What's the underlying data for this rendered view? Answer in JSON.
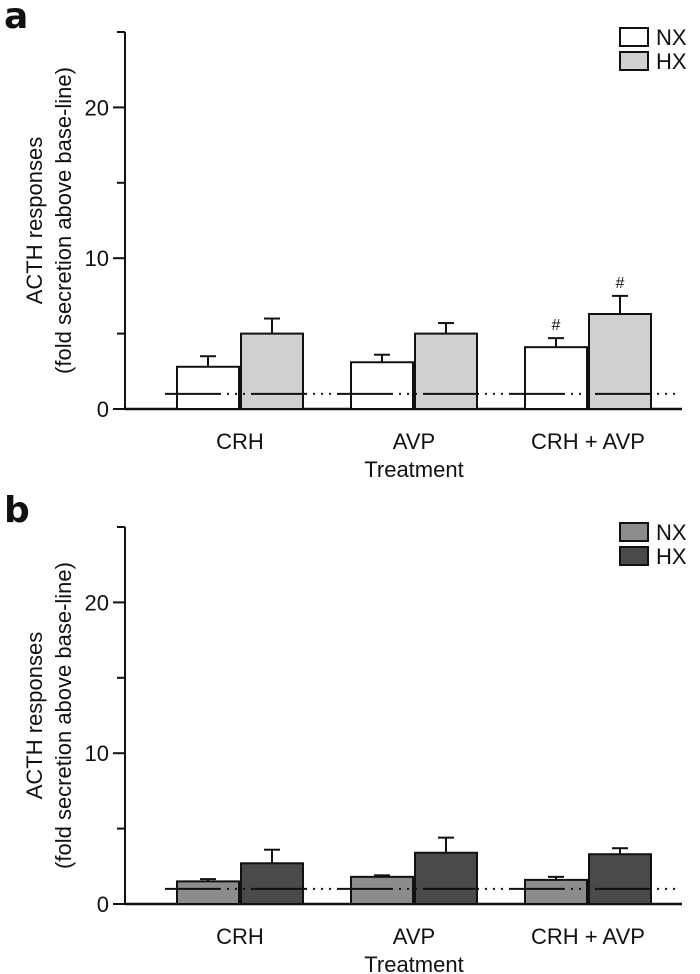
{
  "figure": {
    "panels": [
      "a",
      "b"
    ]
  },
  "chart_data": [
    {
      "panel": "a",
      "type": "bar",
      "categories": [
        "CRH",
        "AVP",
        "CRH + AVP"
      ],
      "series": [
        {
          "name": "NX",
          "color": "#ffffff",
          "values": [
            2.8,
            3.1,
            4.1
          ],
          "errors": [
            0.7,
            0.5,
            0.6
          ]
        },
        {
          "name": "HX",
          "color": "#d0d0d0",
          "values": [
            5.0,
            5.0,
            6.3
          ],
          "errors": [
            1.0,
            0.7,
            1.2
          ]
        }
      ],
      "annotations": [
        {
          "text": "#",
          "series": 0,
          "category": 2
        },
        {
          "text": "#",
          "series": 1,
          "category": 2
        }
      ],
      "baseline": 1,
      "xlabel": "Treatment",
      "ylabel": [
        "ACTH responses",
        "(fold secretion above base-line)"
      ],
      "ylim": [
        0,
        25
      ],
      "yticks": [
        0,
        10,
        20
      ],
      "ytick_labels": [
        "0",
        "10",
        "20"
      ],
      "minor_yticks": [
        5,
        15,
        25
      ],
      "legend_position": "top-right",
      "grid": false
    },
    {
      "panel": "b",
      "type": "bar",
      "categories": [
        "CRH",
        "AVP",
        "CRH + AVP"
      ],
      "series": [
        {
          "name": "NX",
          "color": "#8c8c8c",
          "values": [
            1.5,
            1.8,
            1.6
          ],
          "errors": [
            0.15,
            0.1,
            0.2
          ]
        },
        {
          "name": "HX",
          "color": "#4a4a4a",
          "values": [
            2.7,
            3.4,
            3.3
          ],
          "errors": [
            0.9,
            1.0,
            0.4
          ]
        }
      ],
      "annotations": [],
      "baseline": 1,
      "xlabel": "Treatment",
      "ylabel": [
        "ACTH responses",
        "(fold secretion above base-line)"
      ],
      "ylim": [
        0,
        25
      ],
      "yticks": [
        0,
        10,
        20
      ],
      "ytick_labels": [
        "0",
        "10",
        "20"
      ],
      "minor_yticks": [
        5,
        15,
        25
      ],
      "legend_position": "top-right",
      "grid": false
    }
  ]
}
